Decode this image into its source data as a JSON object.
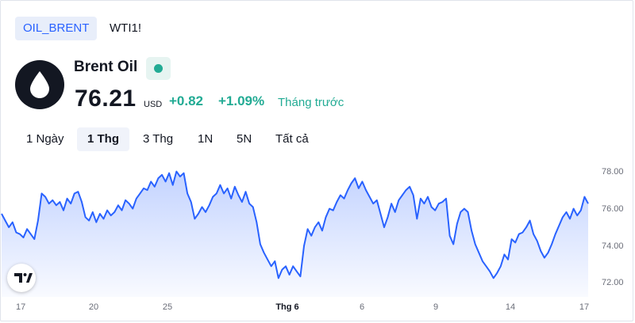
{
  "symbol_tabs": [
    {
      "label": "OIL_BRENT",
      "active": true
    },
    {
      "label": "WTI1!",
      "active": false
    }
  ],
  "instrument": {
    "name": "Brent Oil",
    "logo_icon": "oil-drop-icon",
    "status_icon": "market-status-dot-icon",
    "price": "76.21",
    "currency": "USD",
    "change": "+0.82",
    "change_percent": "+1.09%",
    "period_label": "Tháng trước"
  },
  "ranges": [
    {
      "label": "1 Ngày",
      "active": false
    },
    {
      "label": "1 Thg",
      "active": true
    },
    {
      "label": "3 Thg",
      "active": false
    },
    {
      "label": "1N",
      "active": false
    },
    {
      "label": "5N",
      "active": false
    },
    {
      "label": "Tất cả",
      "active": false
    }
  ],
  "colors": {
    "accent": "#2962ff",
    "line": "#2962ff",
    "positive": "#22ab94",
    "text": "#131722",
    "muted": "#6a6d78"
  },
  "chart_data": {
    "type": "area",
    "ylim": [
      71.4,
      78.6
    ],
    "y_ticks": [
      "78.00",
      "76.00",
      "74.00",
      "72.00"
    ],
    "x_ticks": [
      "17",
      "20",
      "25",
      "Thg 6",
      "6",
      "9",
      "14",
      "17"
    ],
    "series": [
      {
        "values": [
          75.7,
          75.3,
          74.9,
          75.2,
          74.6,
          74.5,
          74.3,
          74.8,
          74.5,
          74.2,
          75.3,
          76.9,
          76.7,
          76.3,
          76.5,
          76.2,
          76.4,
          75.9,
          76.6,
          76.3,
          76.9,
          77.0,
          76.4,
          75.5,
          75.3,
          75.8,
          75.2,
          75.7,
          75.4,
          75.9,
          75.6,
          75.8,
          76.2,
          75.9,
          76.5,
          76.3,
          76.0,
          76.6,
          76.9,
          77.2,
          77.1,
          77.6,
          77.3,
          77.8,
          78.0,
          77.6,
          78.1,
          77.4,
          78.2,
          77.9,
          78.1,
          76.9,
          76.4,
          75.4,
          75.7,
          76.1,
          75.8,
          76.2,
          76.7,
          76.9,
          77.4,
          76.9,
          77.2,
          76.6,
          77.3,
          76.8,
          76.4,
          77.0,
          76.3,
          76.1,
          75.2,
          73.9,
          73.4,
          73.0,
          72.6,
          72.9,
          71.9,
          72.4,
          72.6,
          72.1,
          72.6,
          72.3,
          72.0,
          73.8,
          74.8,
          74.4,
          74.9,
          75.2,
          74.7,
          75.5,
          76.0,
          75.9,
          76.4,
          76.8,
          76.6,
          77.1,
          77.5,
          77.8,
          77.2,
          77.6,
          77.1,
          76.7,
          76.3,
          76.5,
          75.7,
          74.9,
          75.5,
          76.3,
          75.8,
          76.5,
          76.8,
          77.1,
          77.3,
          76.8,
          75.4,
          76.6,
          76.3,
          76.7,
          76.1,
          75.9,
          76.3,
          76.4,
          76.6,
          74.4,
          73.9,
          75.1,
          75.8,
          76.0,
          75.8,
          74.7,
          73.9,
          73.4,
          72.9,
          72.6,
          72.3,
          71.9,
          72.2,
          72.6,
          73.3,
          73.0,
          74.2,
          74.0,
          74.5,
          74.6,
          74.9,
          75.3,
          74.5,
          74.1,
          73.5,
          73.1,
          73.4,
          73.9,
          74.5,
          75.0,
          75.5,
          75.8,
          75.4,
          76.0,
          75.6,
          75.9,
          76.7,
          76.3
        ]
      }
    ]
  }
}
